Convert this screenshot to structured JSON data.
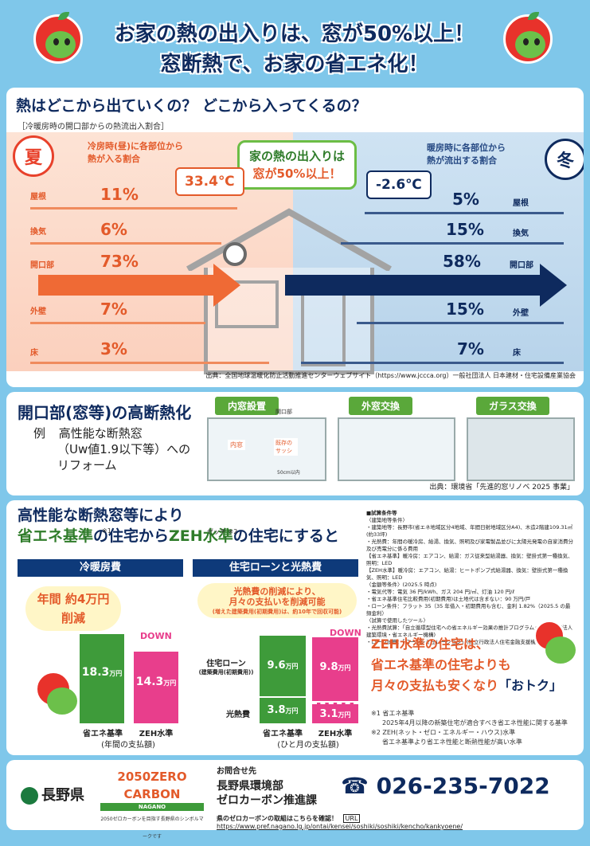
{
  "header": {
    "line1": "お家の熱の出入りは、窓が50%以上！",
    "line2": "窓断熱で、お家の省エネ化！"
  },
  "section1": {
    "title": "熱はどこから出ていくの？ どこから入ってくるの？",
    "subtitle": "［冷暖房時の開口部からの熱流出入割合］",
    "summer_label": "夏",
    "winter_label": "冬",
    "summer_head_1": "冷房時(昼)に各部位から",
    "summer_head_2": "熱が入る割合",
    "winter_head_1": "暖房時に各部位から",
    "winter_head_2": "熱が流出する割合",
    "banner_1": "家の熱の出入りは",
    "banner_2": "窓が50%以上！",
    "temp_hot": "33.4℃",
    "temp_cold": "-2.6℃",
    "summer_rows": [
      {
        "label": "屋根",
        "pct": "11%"
      },
      {
        "label": "換気",
        "pct": "6%"
      },
      {
        "label": "開口部",
        "pct": "73%"
      },
      {
        "label": "外壁",
        "pct": "7%"
      },
      {
        "label": "床",
        "pct": "3%"
      }
    ],
    "winter_rows": [
      {
        "label": "屋根",
        "pct": "5%"
      },
      {
        "label": "換気",
        "pct": "15%"
      },
      {
        "label": "開口部",
        "pct": "58%"
      },
      {
        "label": "外壁",
        "pct": "15%"
      },
      {
        "label": "床",
        "pct": "7%"
      }
    ],
    "source": "出典：全国地球温暖化防止活動推進センターウェブサイト（https://www.jccca.org）一般社団法人 日本建材・住宅設備産業協会"
  },
  "section2": {
    "title": "開口部(窓等)の高断熱化",
    "example_label": "例",
    "body_1": "高性能な断熱窓",
    "body_2": "（Uw値1.9以下等）への",
    "body_3": "リフォーム",
    "tags": [
      "内窓設置",
      "外窓交換",
      "ガラス交換"
    ],
    "diagram_label_inner": "内窓",
    "diagram_label_existing": "既存のサッシ",
    "diagram_label_opening": "開口部",
    "diagram_label_width": "50cm以内",
    "source": "出典：環境省「先進的窓リノベ 2025 事業」"
  },
  "section3": {
    "title_1": "高性能な断熱窓等により",
    "title_2a": "省エネ基準",
    "title_2b": "の住宅から",
    "title_2c": "ZEH水準",
    "title_2d": "の住宅にすると",
    "sup1": "※1",
    "sup2": "ゼッチ ※2",
    "left_head": "冷暖房費",
    "right_head": "住宅ローンと光熱費",
    "left_callout_1": "年間 約4万円",
    "left_callout_2": "削減",
    "right_callout_1": "光熱費の削減により、",
    "right_callout_2": "月々の支払いを削減可能",
    "right_callout_3": "(増えた建築費用(初期費用)は、約10年で回収可能)",
    "down": "DOWN",
    "left_bars": [
      {
        "label": "省エネ基準",
        "value": "18.3",
        "unit": "万円"
      },
      {
        "label": "ZEH水準",
        "value": "14.3",
        "unit": "万円"
      }
    ],
    "left_caption": "(年間の支払額)",
    "right_loan_label_1": "住宅ローン",
    "right_loan_label_2": "(建築費用(初期費用))",
    "right_util_label": "光熱費",
    "right_bars": [
      {
        "label": "省エネ基準",
        "loan": "9.6",
        "util": "3.8",
        "unit": "万円"
      },
      {
        "label": "ZEH水準",
        "loan": "9.8",
        "util": "3.1",
        "unit": "万円"
      }
    ],
    "right_caption": "(ひと月の支払額)",
    "notes_title": "■試算条件等",
    "notes": [
      "〈建築地等条件〉",
      "・建築地等：長野市(省エネ地域区分4地域、年間日射地域区分A4)、木造2階建109.31㎡(約33坪)",
      "・光熱費：年間の暖冷房、給湯、換気、照明及び家電製品並びに太陽光発電の自家消費分及び売電分に係る費用",
      "【省エネ基準】暖冷房：エアコン、給湯：ガス従来型給湯器、換気：壁掛式第一種換気、照明：LED",
      "【ZEH水準】暖冷房：エアコン、給湯：ヒートポンプ式給湯器、換気：壁掛式第一種換気、照明：LED",
      "〈金額等条件〉(2025.5 時点)",
      "・電気代等：電気 36 円/kWh、ガス 204 円/㎥、灯油 120 円/ℓ",
      "・省エネ基準住宅比較費用(初期費用)は土地代は含まない：90 万円/戸",
      "・ローン条件：フラット 35（35 年借入・初期費用も含む、金利 1.82%（2025.5 の最頻金利）",
      "〈試算で使用したツール〉",
      "・光熱費試算：「自立循環型住宅への省エネルギー効果の推計プログラム」(一般財団法人 建築環境・省エネルギー機構)",
      "・ローン試算：「ローンシミュレーション」(独立行政法人住宅金融支援機構)"
    ],
    "zeh_msg_1": "ZEH水準の住宅は、",
    "zeh_msg_2": "省エネ基準の住宅よりも",
    "zeh_msg_3a": "月々の支払も安くなり",
    "zeh_msg_3b": "「おトク」",
    "footnote_1": "※1 省エネ基準",
    "footnote_1b": "2025年4月以降の新築住宅が適合すべき省エネ性能に関する基準",
    "footnote_2": "※2 ZEH(ネット・ゼロ・エネルギー・ハウス)水準",
    "footnote_2b": "省エネ基準より省エネ性能と断熱性能が高い水準"
  },
  "footer": {
    "pref_name": "長野県",
    "zc_line1": "2050ZERO",
    "zc_line2": "CARBON",
    "zc_line3": "NAGANO",
    "zc_small": "2050ゼロカーボンを目指す長野県のシンボルマークです",
    "contact_label": "お問合せ先",
    "contact_dept_1": "長野県環境部",
    "contact_dept_2": "ゼロカーボン推進課",
    "phone": "026-235-7022",
    "url_lead": "県のゼロカーボンの取組はこちらを確認！",
    "url_label": "URL",
    "url": "https://www.pref.nagano.lg.jp/ontai/kensei/soshiki/soshiki/kencho/kankyoene/"
  },
  "colors": {
    "background": "#7fc7ea",
    "navy": "#0e2a5e",
    "warm": "#e35a2a",
    "green": "#3e9b3a",
    "pink": "#e83e8c"
  }
}
